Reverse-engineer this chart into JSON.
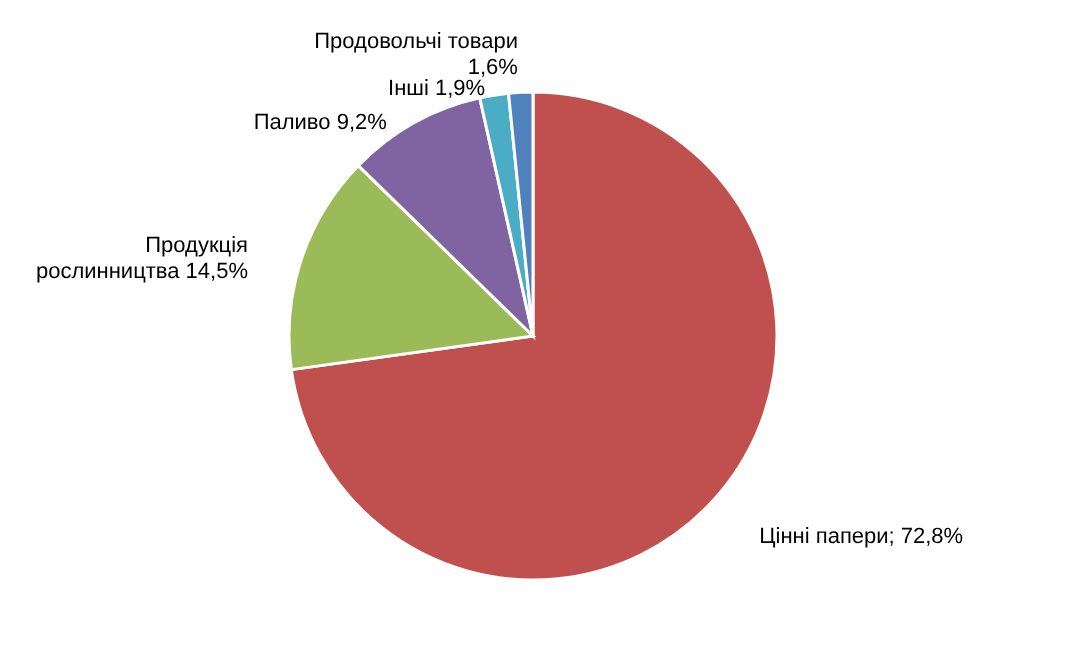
{
  "chart_data": {
    "type": "pie",
    "categories": [
      "Цінні папери",
      "Продукція рослинництва",
      "Паливо",
      "Інші",
      "Продовольчі товари"
    ],
    "values": [
      72.8,
      14.5,
      9.2,
      1.9,
      1.6
    ],
    "colors": [
      "#c0504d",
      "#9bbb59",
      "#8064a2",
      "#4bacc6",
      "#4f81bd"
    ],
    "value_labels": [
      "; 72,8%",
      "14,5%",
      "9,2%",
      "1,9%",
      "1,6%"
    ]
  }
}
